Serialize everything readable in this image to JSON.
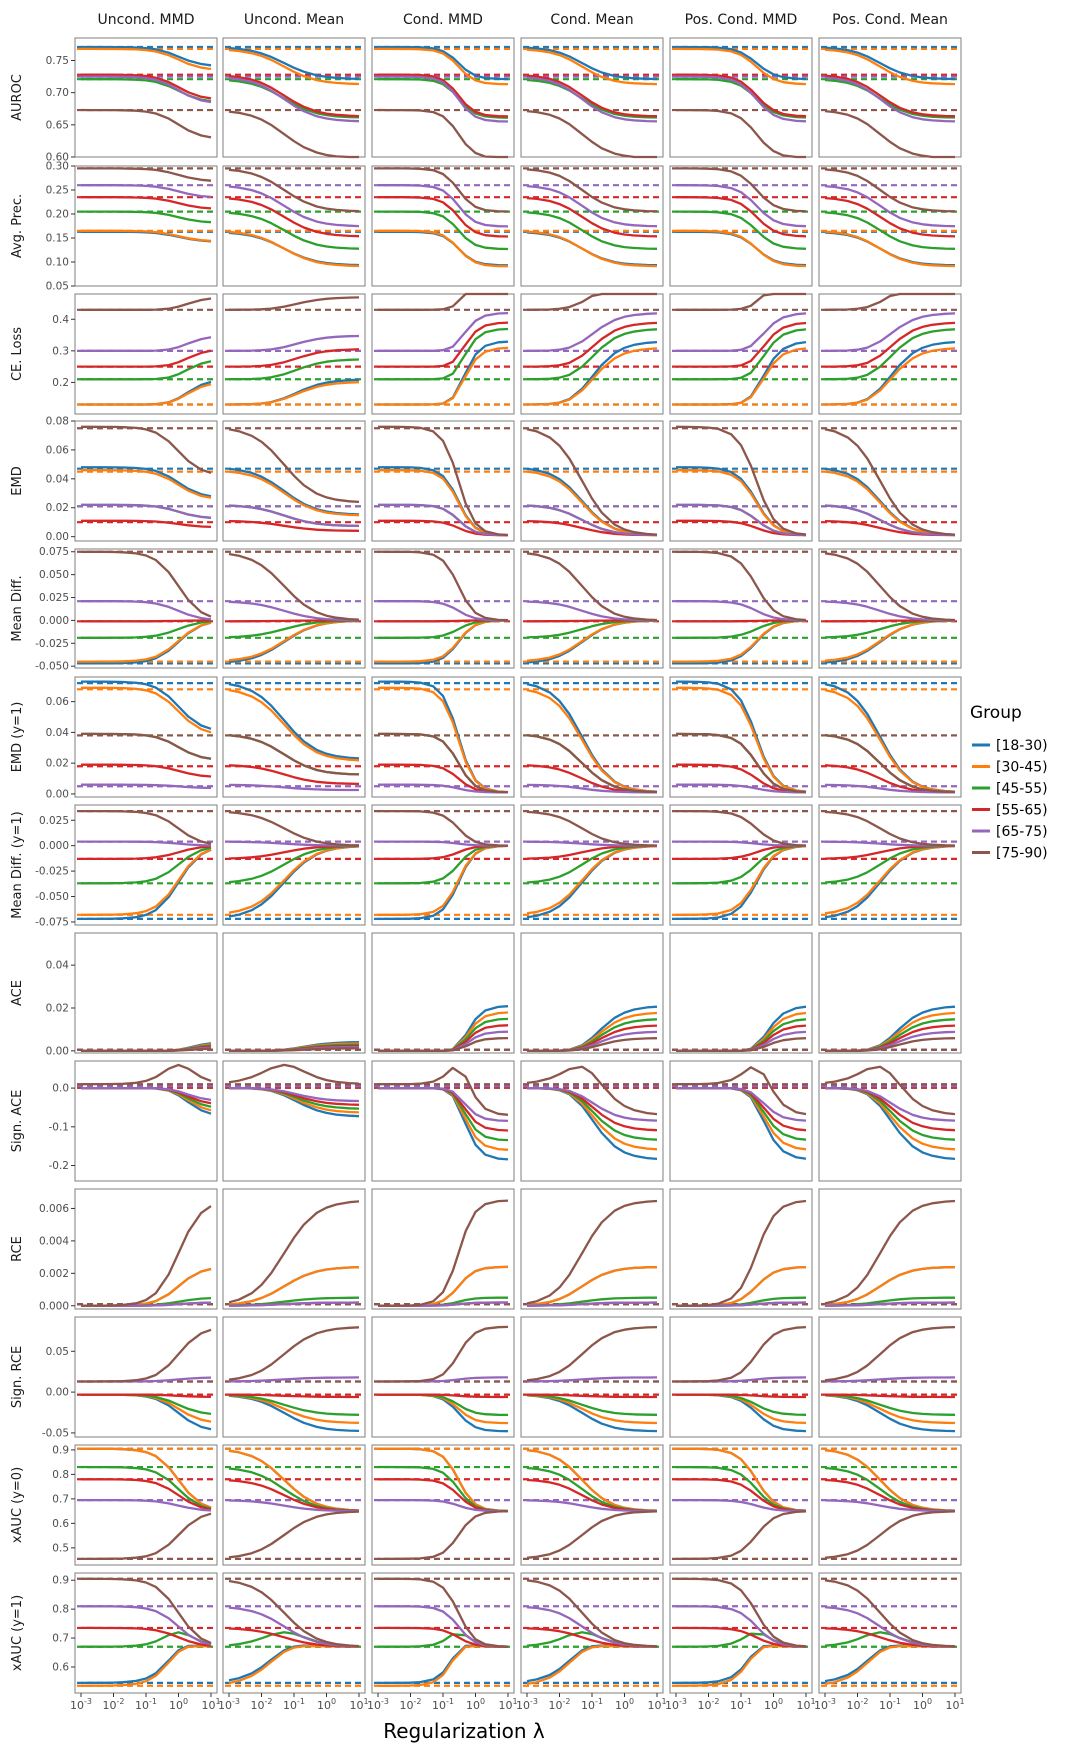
{
  "chart_data": {
    "type": "line",
    "columns": [
      "Uncond. MMD",
      "Uncond. Mean",
      "Cond. MMD",
      "Cond. Mean",
      "Pos. Cond. MMD",
      "Pos. Cond. Mean"
    ],
    "xlabel": "Regularization λ",
    "x": [
      0.001,
      0.002,
      0.005,
      0.01,
      0.02,
      0.05,
      0.1,
      0.2,
      0.5,
      1,
      2,
      5,
      10
    ],
    "x_scale": "log",
    "x_ticks": [
      {
        "base": "10",
        "exp": "-3"
      },
      {
        "base": "10",
        "exp": "-2"
      },
      {
        "base": "10",
        "exp": "-1"
      },
      {
        "base": "10",
        "exp": "0"
      },
      {
        "base": "10",
        "exp": "1"
      }
    ],
    "legend": {
      "title": "Group",
      "placement": "right",
      "groups": [
        {
          "name": "[18-30)",
          "color": "#1f77b4"
        },
        {
          "name": "[30-45)",
          "color": "#ff7f0e"
        },
        {
          "name": "[45-55)",
          "color": "#2ca02c"
        },
        {
          "name": "[55-65)",
          "color": "#d62728"
        },
        {
          "name": "[65-75)",
          "color": "#9467bd"
        },
        {
          "name": "[75-90)",
          "color": "#8c564b"
        }
      ]
    },
    "reference_lines": "dashed horizontal line per group = baseline value (λ = 0)",
    "rows": [
      {
        "metric": "AUROC",
        "ylim": [
          0.6,
          0.785
        ],
        "ticks": [
          "0.60",
          "0.65",
          "0.70",
          "0.75"
        ],
        "tick_values": [
          0.6,
          0.65,
          0.7,
          0.75
        ],
        "baseline": [
          0.771,
          0.768,
          0.721,
          0.728,
          0.725,
          0.673
        ]
      },
      {
        "metric": "Avg. Prec.",
        "ylim": [
          0.05,
          0.3
        ],
        "ticks": [
          "0.05",
          "0.10",
          "0.15",
          "0.20",
          "0.25",
          "0.30"
        ],
        "tick_values": [
          0.05,
          0.1,
          0.15,
          0.2,
          0.25,
          0.3
        ],
        "baseline": [
          0.163,
          0.165,
          0.205,
          0.235,
          0.26,
          0.295
        ]
      },
      {
        "metric": "CE. Loss",
        "ylim": [
          0.1,
          0.48
        ],
        "ticks": [
          "0.2",
          "0.3",
          "0.4"
        ],
        "tick_values": [
          0.2,
          0.3,
          0.4
        ],
        "baseline": [
          0.13,
          0.13,
          0.21,
          0.25,
          0.3,
          0.43
        ]
      },
      {
        "metric": "EMD",
        "ylim": [
          -0.003,
          0.08
        ],
        "ticks": [
          "0.00",
          "0.02",
          "0.04",
          "0.06",
          "0.08"
        ],
        "tick_values": [
          0,
          0.02,
          0.04,
          0.06,
          0.08
        ],
        "baseline": [
          0.047,
          0.045,
          0.021,
          0.01,
          0.021,
          0.075
        ]
      },
      {
        "metric": "Mean Diff.",
        "ylim": [
          -0.052,
          0.078
        ],
        "ticks": [
          "-0.050",
          "-0.025",
          "0.000",
          "0.025",
          "0.050",
          "0.075"
        ],
        "tick_values": [
          -0.05,
          -0.025,
          0,
          0.025,
          0.05,
          0.075
        ],
        "baseline": [
          -0.047,
          -0.045,
          -0.019,
          -0.001,
          0.021,
          0.075
        ]
      },
      {
        "metric": "EMD (y=1)",
        "ylim": [
          -0.002,
          0.076
        ],
        "ticks": [
          "0.00",
          "0.02",
          "0.04",
          "0.06"
        ],
        "tick_values": [
          0,
          0.02,
          0.04,
          0.06
        ],
        "baseline": [
          0.072,
          0.068,
          0.038,
          0.018,
          0.005,
          0.038
        ]
      },
      {
        "metric": "Mean Diff. (y=1)",
        "ylim": [
          -0.078,
          0.04
        ],
        "ticks": [
          "-0.075",
          "-0.050",
          "-0.025",
          "0.000",
          "0.025"
        ],
        "tick_values": [
          -0.075,
          -0.05,
          -0.025,
          0,
          0.025
        ],
        "baseline": [
          -0.072,
          -0.068,
          -0.037,
          -0.013,
          0.004,
          0.034
        ]
      },
      {
        "metric": "ACE",
        "ylim": [
          -0.001,
          0.055
        ],
        "ticks": [
          "0.00",
          "0.02",
          "0.04"
        ],
        "tick_values": [
          0,
          0.02,
          0.04
        ],
        "baseline": [
          0.0005,
          0.0005,
          0.0005,
          0.0005,
          0.0005,
          0.0005
        ]
      },
      {
        "metric": "Sign. ACE",
        "ylim": [
          -0.24,
          0.07
        ],
        "ticks": [
          "-0.2",
          "-0.1",
          "0.0"
        ],
        "tick_values": [
          -0.2,
          -0.1,
          0
        ],
        "baseline": [
          0.001,
          0.001,
          0.001,
          0.001,
          0.005,
          0.01
        ]
      },
      {
        "metric": "RCE",
        "ylim": [
          -0.0002,
          0.0072
        ],
        "ticks": [
          "0.000",
          "0.002",
          "0.004",
          "0.006"
        ],
        "tick_values": [
          0,
          0.002,
          0.004,
          0.006
        ],
        "baseline": [
          0.0001,
          0.0001,
          0.0001,
          0.0001,
          0.0001,
          0.0001
        ]
      },
      {
        "metric": "Sign. RCE",
        "ylim": [
          -0.055,
          0.092
        ],
        "ticks": [
          "-0.05",
          "0.00",
          "0.05"
        ],
        "tick_values": [
          -0.05,
          0,
          0.05
        ],
        "baseline": [
          -0.003,
          -0.003,
          -0.003,
          -0.003,
          0.013,
          0.013
        ]
      },
      {
        "metric": "xAUC (y=0)",
        "ylim": [
          0.43,
          0.92
        ],
        "ticks": [
          "0.5",
          "0.6",
          "0.7",
          "0.8",
          "0.9"
        ],
        "tick_values": [
          0.5,
          0.6,
          0.7,
          0.8,
          0.9
        ],
        "baseline": [
          0.905,
          0.905,
          0.83,
          0.78,
          0.695,
          0.455
        ]
      },
      {
        "metric": "xAUC (y=1)",
        "ylim": [
          0.51,
          0.925
        ],
        "ticks": [
          "0.6",
          "0.7",
          "0.8",
          "0.9"
        ],
        "tick_values": [
          0.6,
          0.7,
          0.8,
          0.9
        ],
        "baseline": [
          0.545,
          0.535,
          0.67,
          0.735,
          0.81,
          0.905
        ]
      }
    ]
  }
}
